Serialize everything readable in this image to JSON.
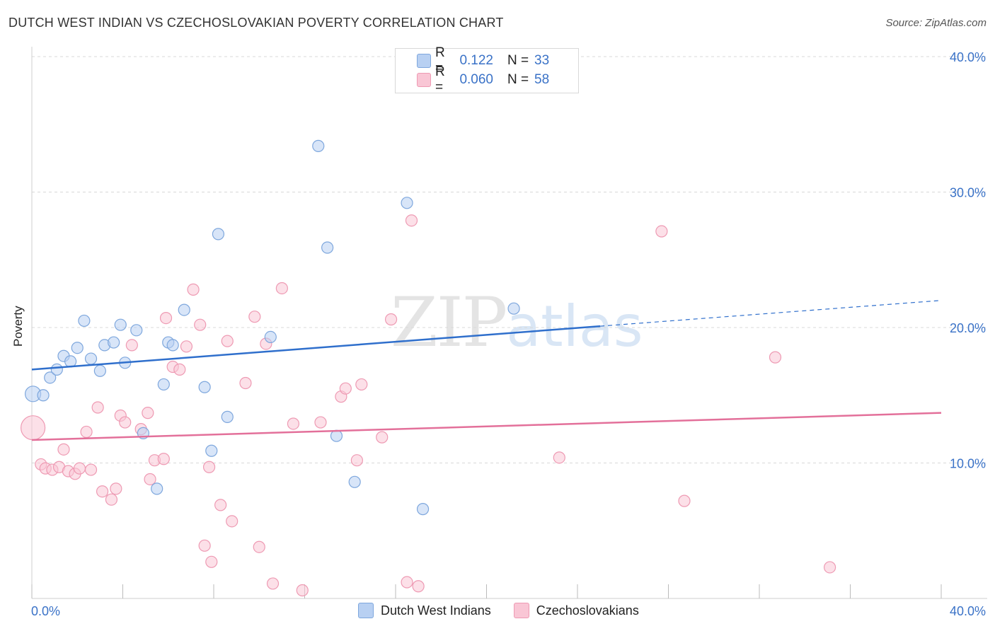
{
  "title": "DUTCH WEST INDIAN VS CZECHOSLOVAKIAN POVERTY CORRELATION CHART",
  "source": "Source: ZipAtlas.com",
  "watermark": {
    "zip": "ZIP",
    "atlas": "atlas"
  },
  "legend": {
    "series": [
      {
        "r_key": "R =",
        "r_value": "0.122",
        "n_key": "N =",
        "n_value": "33",
        "fill": "#b8d0f2",
        "stroke": "#7ea7dd"
      },
      {
        "r_key": "R =",
        "r_value": "0.060",
        "n_key": "N =",
        "n_value": "58",
        "fill": "#f9c6d5",
        "stroke": "#ee9ab3"
      }
    ]
  },
  "bottom_legend": [
    "Dutch West Indians",
    "Czechoslovakians"
  ],
  "chart_data": {
    "type": "scatter",
    "title": "DUTCH WEST INDIAN VS CZECHOSLOVAKIAN POVERTY CORRELATION CHART",
    "xlabel": "",
    "ylabel": "Poverty",
    "xlim": [
      0,
      40
    ],
    "ylim": [
      0,
      40
    ],
    "x_tick_labels": [
      "0.0%",
      "40.0%"
    ],
    "y_tick_labels": [
      "10.0%",
      "20.0%",
      "30.0%",
      "40.0%"
    ],
    "y_ticks": [
      10,
      20,
      30,
      40
    ],
    "grid": true,
    "legend_position": "top-center",
    "series": [
      {
        "name": "Dutch West Indians",
        "color": "#7ea7dd",
        "fill": "#b8d0f2",
        "line_color": "#2f6fcc",
        "trend": {
          "x0": 0,
          "y0": 16.9,
          "x1": 25,
          "y1": 20.1,
          "dashed_to_x": 40,
          "dashed_to_y": 22.0
        },
        "points": [
          [
            0.05,
            15.1
          ],
          [
            0.5,
            15.0
          ],
          [
            0.8,
            16.3
          ],
          [
            1.1,
            16.9
          ],
          [
            1.4,
            17.9
          ],
          [
            1.7,
            17.5
          ],
          [
            2.0,
            18.5
          ],
          [
            2.3,
            20.5
          ],
          [
            2.6,
            17.7
          ],
          [
            3.0,
            16.8
          ],
          [
            3.2,
            18.7
          ],
          [
            3.6,
            18.9
          ],
          [
            3.9,
            20.2
          ],
          [
            4.1,
            17.4
          ],
          [
            4.6,
            19.8
          ],
          [
            4.9,
            12.2
          ],
          [
            5.5,
            8.1
          ],
          [
            5.8,
            15.8
          ],
          [
            6.0,
            18.9
          ],
          [
            6.2,
            18.7
          ],
          [
            6.7,
            21.3
          ],
          [
            7.6,
            15.6
          ],
          [
            8.2,
            26.9
          ],
          [
            7.9,
            10.9
          ],
          [
            8.6,
            13.4
          ],
          [
            10.5,
            19.3
          ],
          [
            12.6,
            33.4
          ],
          [
            13.0,
            25.9
          ],
          [
            13.4,
            12.0
          ],
          [
            14.2,
            8.6
          ],
          [
            16.5,
            29.2
          ],
          [
            17.2,
            6.6
          ],
          [
            21.2,
            21.4
          ]
        ]
      },
      {
        "name": "Czechoslovakians",
        "color": "#ee9ab3",
        "fill": "#f9c6d5",
        "line_color": "#e3709a",
        "trend": {
          "x0": 0,
          "y0": 11.7,
          "x1": 40,
          "y1": 13.7
        },
        "points": [
          [
            0.05,
            12.6
          ],
          [
            0.4,
            9.9
          ],
          [
            0.6,
            9.6
          ],
          [
            0.9,
            9.5
          ],
          [
            1.2,
            9.7
          ],
          [
            1.4,
            11.0
          ],
          [
            1.6,
            9.4
          ],
          [
            1.9,
            9.2
          ],
          [
            2.1,
            9.6
          ],
          [
            2.4,
            12.3
          ],
          [
            2.6,
            9.5
          ],
          [
            2.9,
            14.1
          ],
          [
            3.1,
            7.9
          ],
          [
            3.5,
            7.3
          ],
          [
            3.7,
            8.1
          ],
          [
            3.9,
            13.5
          ],
          [
            4.1,
            13.0
          ],
          [
            4.4,
            18.7
          ],
          [
            4.8,
            12.5
          ],
          [
            5.1,
            13.7
          ],
          [
            5.2,
            8.8
          ],
          [
            5.4,
            10.2
          ],
          [
            5.8,
            10.3
          ],
          [
            5.9,
            20.7
          ],
          [
            6.2,
            17.1
          ],
          [
            6.5,
            16.9
          ],
          [
            6.8,
            18.6
          ],
          [
            7.1,
            22.8
          ],
          [
            7.4,
            20.2
          ],
          [
            7.6,
            3.9
          ],
          [
            7.8,
            9.7
          ],
          [
            7.9,
            2.7
          ],
          [
            8.3,
            6.9
          ],
          [
            8.6,
            19.0
          ],
          [
            8.8,
            5.7
          ],
          [
            9.4,
            15.9
          ],
          [
            9.8,
            20.8
          ],
          [
            10.0,
            3.8
          ],
          [
            10.3,
            18.8
          ],
          [
            10.6,
            1.1
          ],
          [
            11.0,
            22.9
          ],
          [
            11.5,
            12.9
          ],
          [
            11.9,
            0.6
          ],
          [
            12.7,
            13.0
          ],
          [
            13.6,
            14.9
          ],
          [
            13.8,
            15.5
          ],
          [
            14.3,
            10.2
          ],
          [
            14.5,
            15.8
          ],
          [
            15.4,
            11.9
          ],
          [
            15.8,
            20.6
          ],
          [
            16.5,
            1.2
          ],
          [
            17.0,
            0.9
          ],
          [
            16.7,
            27.9
          ],
          [
            23.2,
            10.4
          ],
          [
            27.7,
            27.1
          ],
          [
            28.7,
            7.2
          ],
          [
            32.7,
            17.8
          ],
          [
            35.1,
            2.3
          ]
        ]
      }
    ]
  }
}
